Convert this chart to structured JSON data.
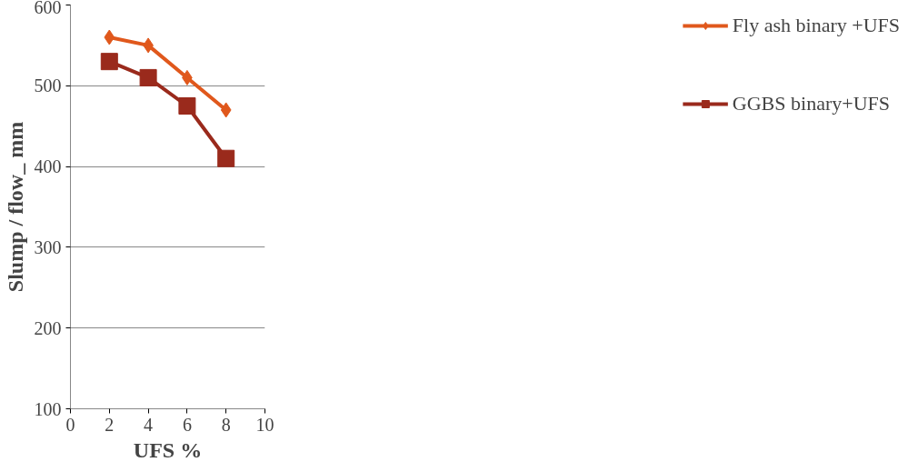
{
  "chart_data": {
    "type": "line",
    "xlabel": "UFS %",
    "ylabel": "Slump / flow_ mm",
    "x": [
      2,
      4,
      6,
      8
    ],
    "series": [
      {
        "name": "Fly ash binary +UFS",
        "color": "#e0581c",
        "marker": "diamond",
        "values": [
          560,
          550,
          510,
          470
        ]
      },
      {
        "name": "GGBS binary+UFS",
        "color": "#9a2a1c",
        "marker": "square",
        "values": [
          530,
          510,
          475,
          410
        ]
      }
    ],
    "xlim": [
      0,
      10
    ],
    "xticks": [
      0,
      2,
      4,
      6,
      8,
      10
    ],
    "ylim": [
      100,
      600
    ],
    "yticks": [
      100,
      200,
      300,
      400,
      500,
      600
    ],
    "grid": "y",
    "legend": "right"
  }
}
